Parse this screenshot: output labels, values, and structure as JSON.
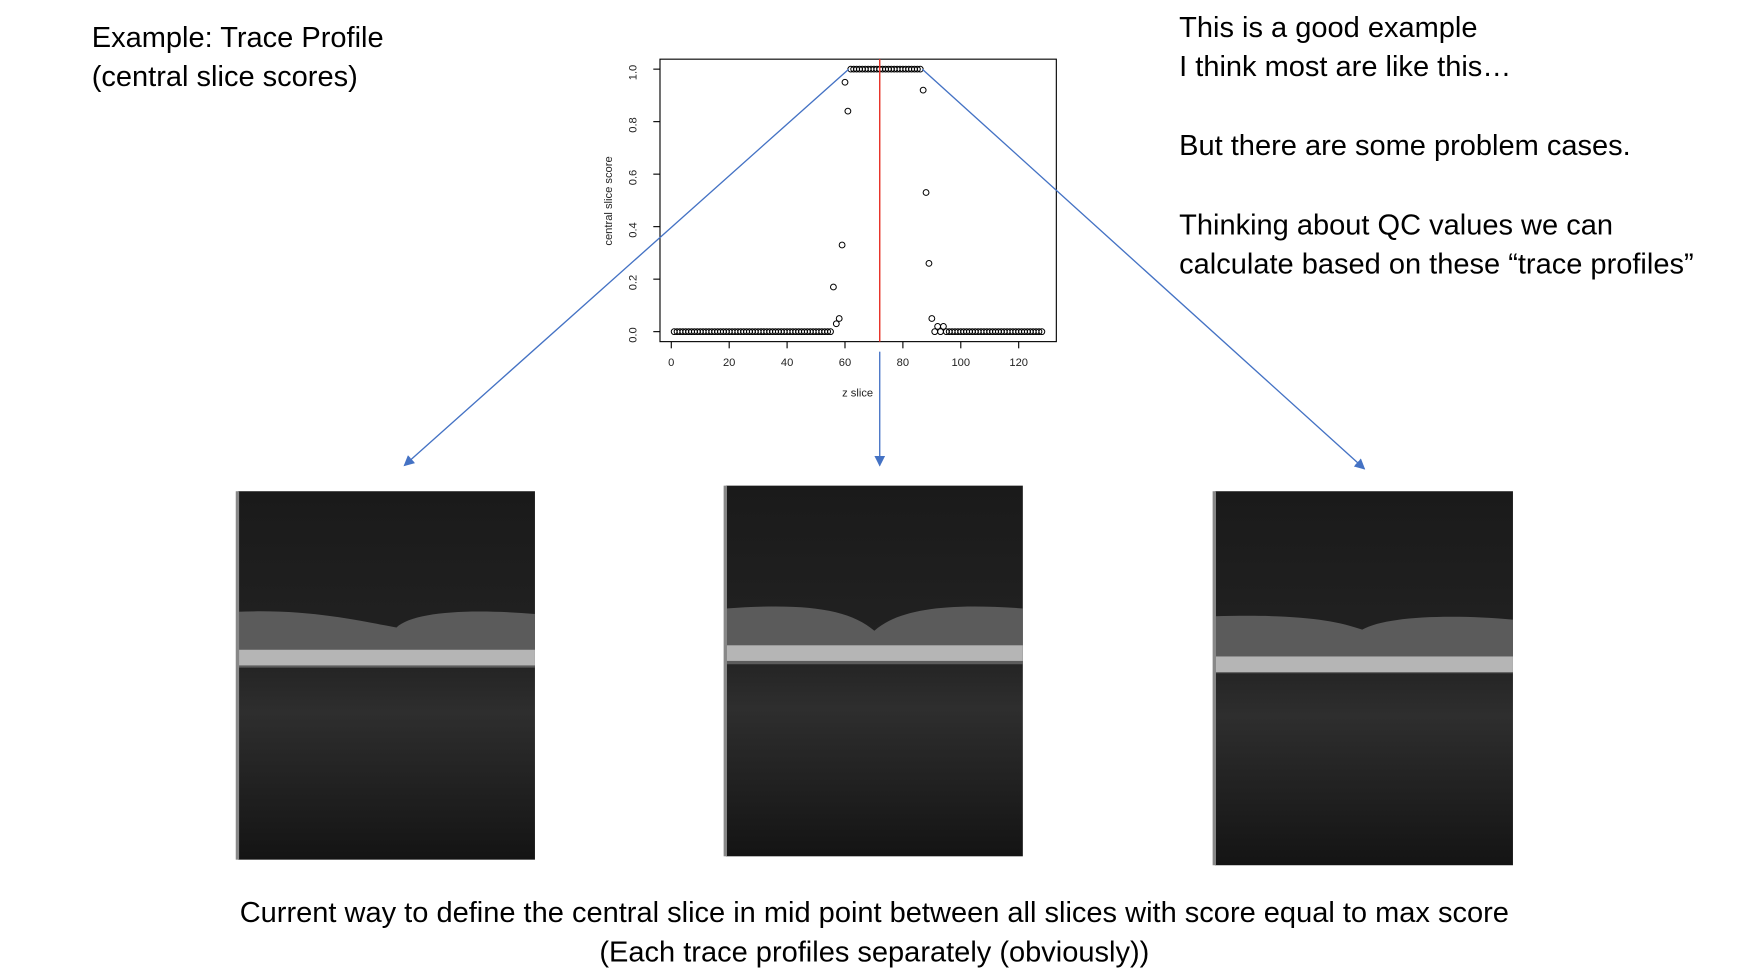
{
  "left_title": [
    "Example: Trace Profile",
    "(central slice scores)"
  ],
  "notes": [
    "This is a good example",
    "I think most are like this…",
    "But there are some problem cases.",
    "Thinking about QC values we can",
    "calculate based on these “trace profiles”"
  ],
  "caption": [
    "Current way to define the central slice in mid point between all slices with score equal to max score",
    "(Each trace profiles separately (obviously))"
  ],
  "chart_data": {
    "type": "scatter",
    "xlabel": "z slice",
    "ylabel": "central slice score",
    "x": [
      1,
      2,
      3,
      4,
      5,
      6,
      7,
      8,
      9,
      10,
      11,
      12,
      13,
      14,
      15,
      16,
      17,
      18,
      19,
      20,
      21,
      22,
      23,
      24,
      25,
      26,
      27,
      28,
      29,
      30,
      31,
      32,
      33,
      34,
      35,
      36,
      37,
      38,
      39,
      40,
      41,
      42,
      43,
      44,
      45,
      46,
      47,
      48,
      49,
      50,
      51,
      52,
      53,
      54,
      55,
      56,
      57,
      58,
      59,
      60,
      61,
      62,
      63,
      64,
      65,
      66,
      67,
      68,
      69,
      70,
      71,
      72,
      73,
      74,
      75,
      76,
      77,
      78,
      79,
      80,
      81,
      82,
      83,
      84,
      85,
      86,
      87,
      88,
      89,
      90,
      91,
      92,
      93,
      94,
      95,
      96,
      97,
      98,
      99,
      100,
      101,
      102,
      103,
      104,
      105,
      106,
      107,
      108,
      109,
      110,
      111,
      112,
      113,
      114,
      115,
      116,
      117,
      118,
      119,
      120,
      121,
      122,
      123,
      124,
      125,
      126,
      127,
      128
    ],
    "values": [
      0,
      0,
      0,
      0,
      0,
      0,
      0,
      0,
      0,
      0,
      0,
      0,
      0,
      0,
      0,
      0,
      0,
      0,
      0,
      0,
      0,
      0,
      0,
      0,
      0,
      0,
      0,
      0,
      0,
      0,
      0,
      0,
      0,
      0,
      0,
      0,
      0,
      0,
      0,
      0,
      0,
      0,
      0,
      0,
      0,
      0,
      0,
      0,
      0,
      0,
      0,
      0,
      0,
      0,
      0,
      0.17,
      0.03,
      0.05,
      0.33,
      0.95,
      0.84,
      1,
      1,
      1,
      1,
      1,
      1,
      1,
      1,
      1,
      1,
      1,
      1,
      1,
      1,
      1,
      1,
      1,
      1,
      1,
      1,
      1,
      1,
      1,
      1,
      1,
      0.92,
      0.53,
      0.26,
      0.05,
      0,
      0.02,
      0,
      0.02,
      0,
      0,
      0,
      0,
      0,
      0,
      0,
      0,
      0,
      0,
      0,
      0,
      0,
      0,
      0,
      0,
      0,
      0,
      0,
      0,
      0,
      0,
      0,
      0,
      0,
      0,
      0,
      0,
      0,
      0,
      0,
      0,
      0,
      0
    ],
    "vline": 72,
    "vline_color": "#e8352b",
    "color": "#000000",
    "arrow_color": "#4472c4",
    "xlim": [
      -3.9,
      133
    ],
    "ylim": [
      -0.038,
      1.038
    ],
    "xticks": [
      0,
      20,
      40,
      60,
      80,
      100,
      120
    ],
    "yticks": [
      {
        "value": 0,
        "label": "0.0"
      },
      0.2,
      0.4,
      0.6,
      0.8,
      {
        "value": 1,
        "label": "1.0"
      }
    ]
  }
}
